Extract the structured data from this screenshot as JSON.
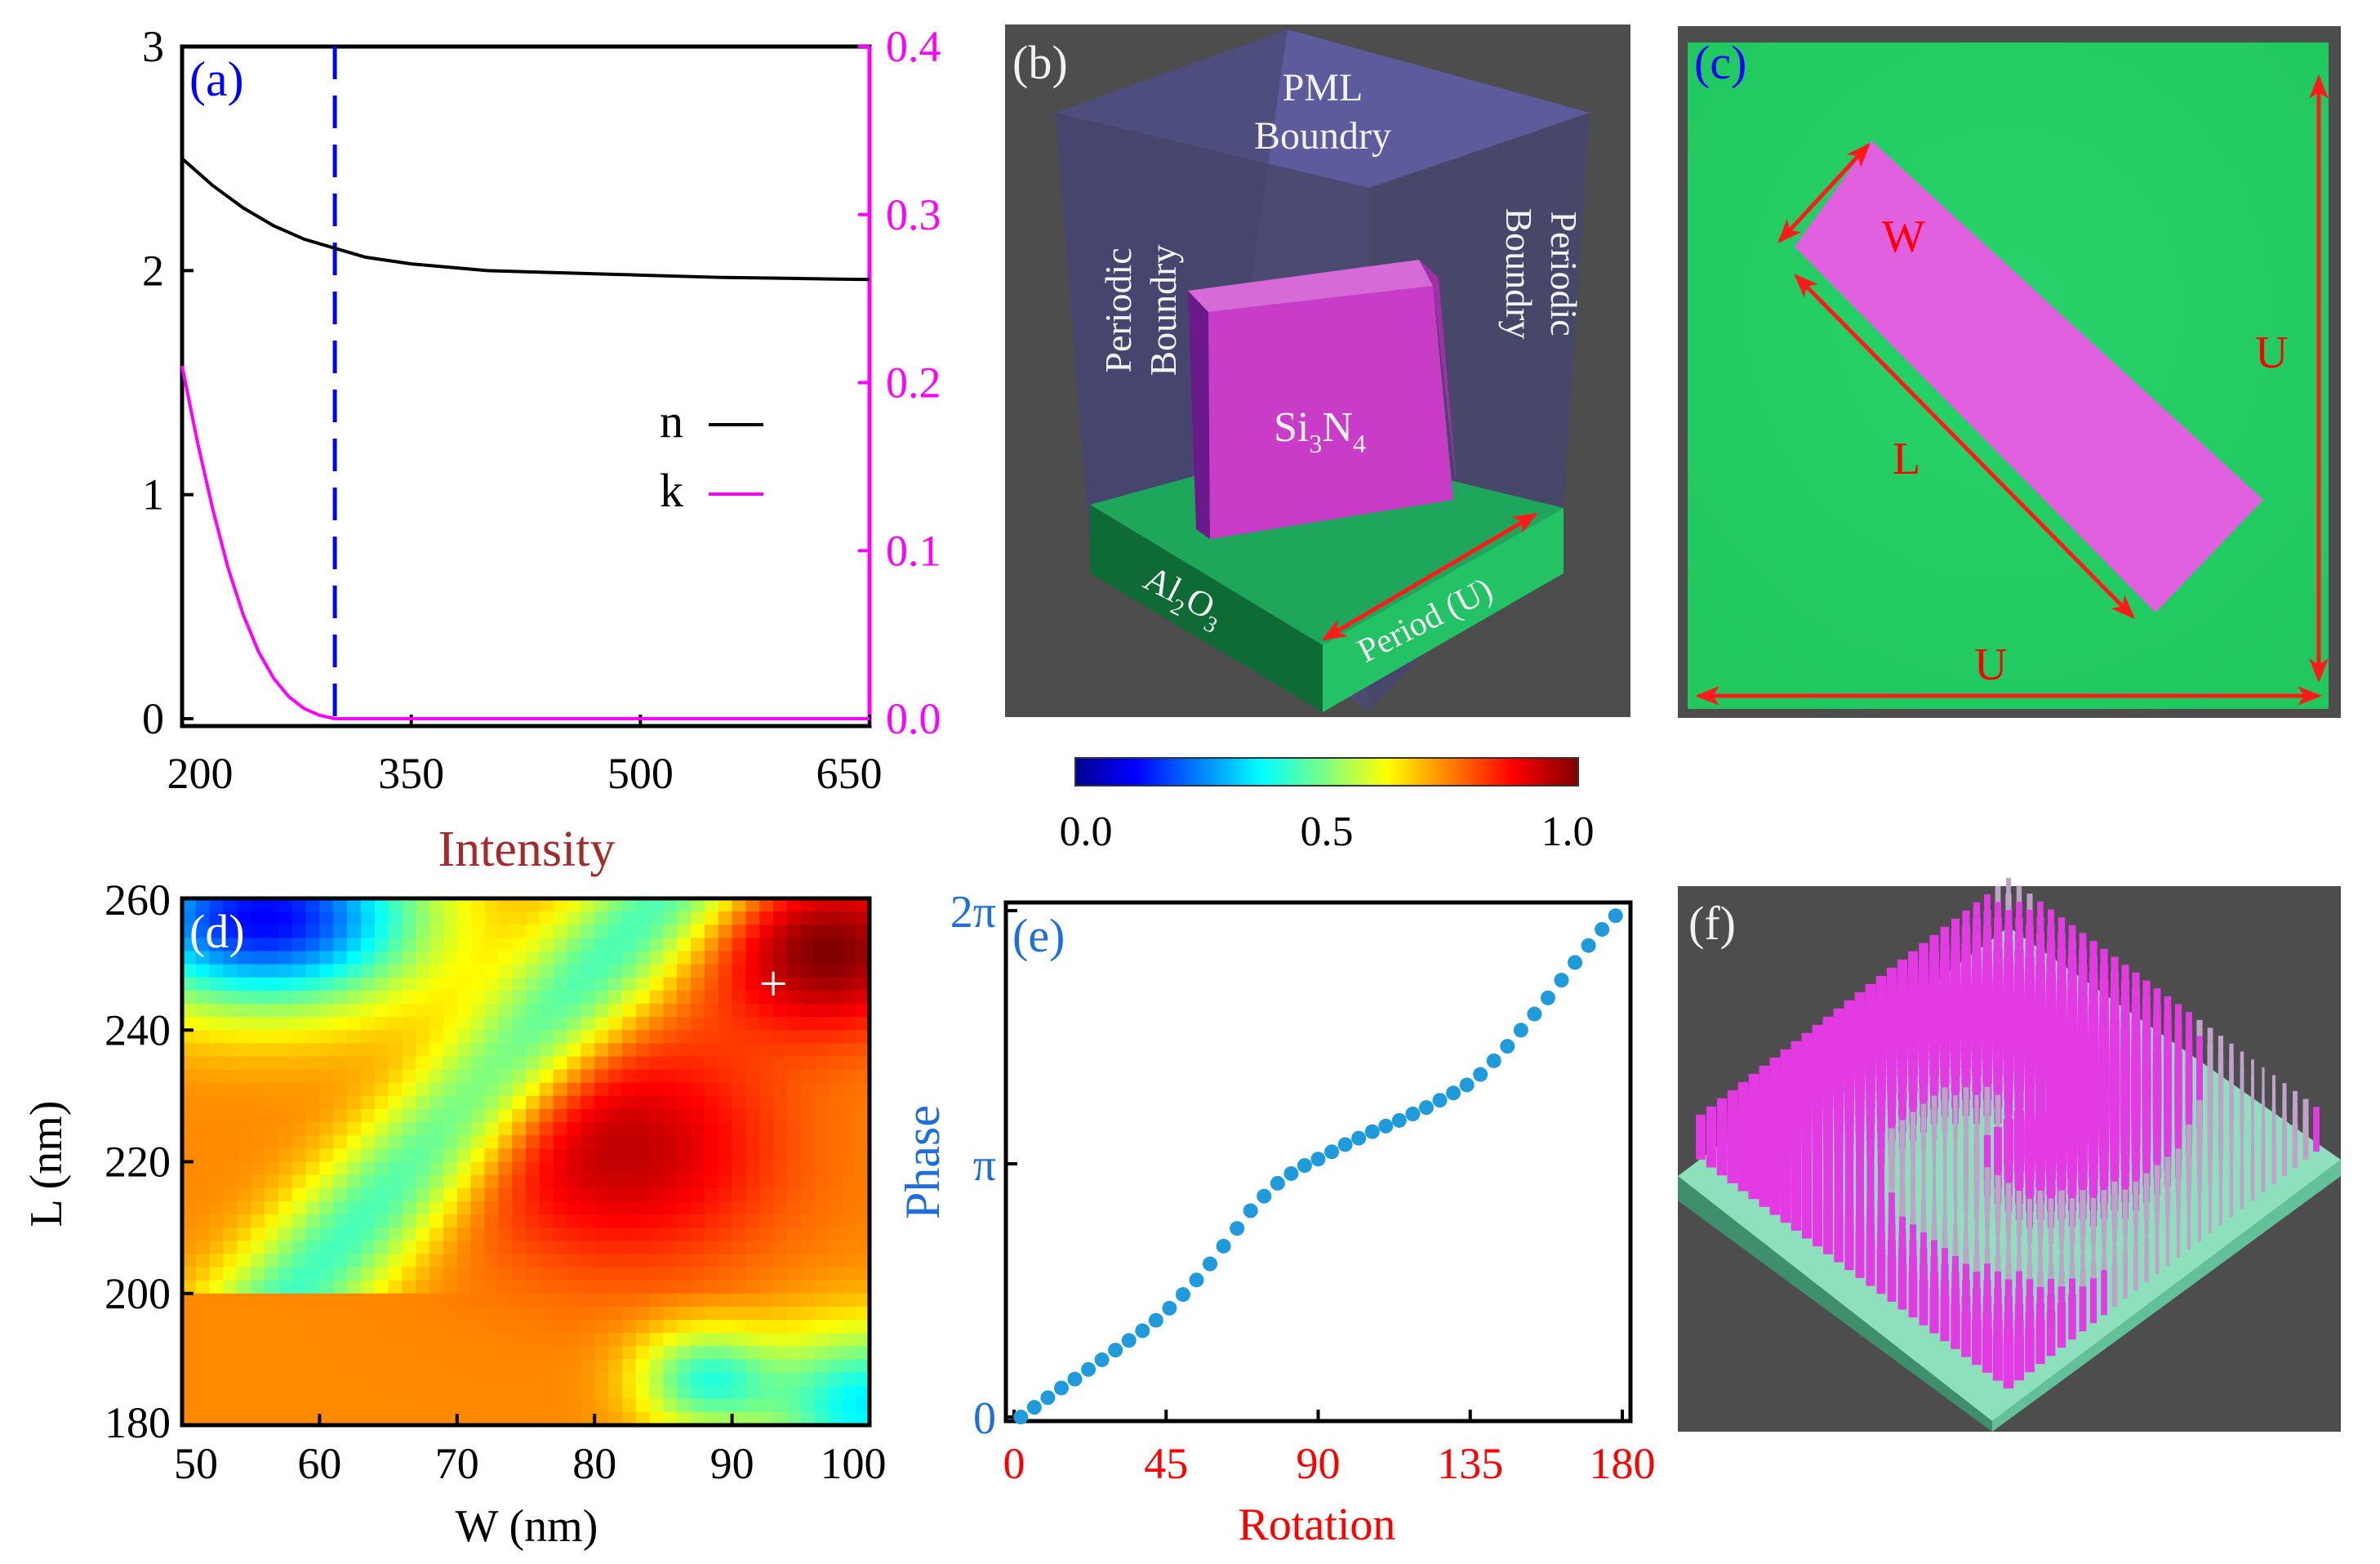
{
  "panel_labels": {
    "a": "(a)",
    "b": "(b)",
    "c": "(c)",
    "d": "(d)",
    "e": "(e)",
    "f": "(f)"
  },
  "colors": {
    "n_line": "#000000",
    "k_line": "#ff00ff",
    "dashed_line": "#0000ff",
    "label_blue": "#0000ff",
    "label_red": "#ff0000",
    "phase_blue": "#1e6fd9",
    "phase_dots": "#1f9bdc",
    "intensity_title": "#a52a2a",
    "panel_bg": "#4d4d4d",
    "substrate_green": "#2ec464",
    "pillar_magenta": "#e040e0",
    "pml_blue": "#5a5a9a"
  },
  "chart_data": [
    {
      "id": "a",
      "type": "line",
      "title": "",
      "xlabel": "",
      "ylabel": "",
      "x_ticks": [
        "200",
        "350",
        "500",
        "650"
      ],
      "x_range": [
        200,
        650
      ],
      "y_ticks": [
        "0",
        "1",
        "2",
        "3"
      ],
      "y_range": [
        0,
        3
      ],
      "y2_ticks": [
        "0.0",
        "0.1",
        "0.2",
        "0.3",
        "0.4"
      ],
      "y2_range": [
        0,
        0.4
      ],
      "dashed_x": 300,
      "series": [
        {
          "name": "n",
          "axis": "left",
          "x": [
            200,
            220,
            240,
            260,
            280,
            300,
            320,
            350,
            400,
            450,
            500,
            550,
            600,
            650
          ],
          "values": [
            2.5,
            2.38,
            2.28,
            2.2,
            2.14,
            2.1,
            2.06,
            2.03,
            2.0,
            1.99,
            1.98,
            1.97,
            1.965,
            1.96
          ]
        },
        {
          "name": "k",
          "axis": "right",
          "x": [
            200,
            210,
            220,
            230,
            240,
            250,
            260,
            270,
            280,
            290,
            300,
            320,
            350,
            400,
            500,
            650
          ],
          "values": [
            0.21,
            0.165,
            0.125,
            0.09,
            0.062,
            0.04,
            0.024,
            0.013,
            0.006,
            0.002,
            0.0,
            0.0,
            0.0,
            0.0,
            0.0,
            0.0
          ]
        }
      ],
      "legend": [
        {
          "label": "n"
        },
        {
          "label": "k"
        }
      ]
    },
    {
      "id": "colorbar",
      "type": "colorbar",
      "ticks": [
        "0.0",
        "0.5",
        "1.0"
      ],
      "range": [
        0,
        1
      ]
    },
    {
      "id": "d",
      "type": "heatmap",
      "title": "Intensity",
      "xlabel": "W (nm)",
      "ylabel": "L (nm)",
      "x_ticks": [
        "50",
        "60",
        "70",
        "80",
        "90",
        "100"
      ],
      "x_range": [
        50,
        100
      ],
      "y_ticks": [
        "180",
        "200",
        "220",
        "240",
        "260"
      ],
      "y_range": [
        180,
        260
      ],
      "marker": {
        "W": 93,
        "L": 247,
        "symbol": "+"
      }
    },
    {
      "id": "e",
      "type": "scatter",
      "title": "",
      "xlabel": "Rotation",
      "ylabel": "Phase",
      "x_ticks": [
        "0",
        "45",
        "90",
        "135",
        "180"
      ],
      "x_range": [
        0,
        180
      ],
      "y_ticks": [
        "0",
        "π",
        "2π"
      ],
      "y_range": [
        0,
        6.283
      ],
      "x": [
        2,
        6,
        10,
        14,
        18,
        22,
        26,
        30,
        34,
        38,
        42,
        46,
        50,
        54,
        58,
        62,
        66,
        70,
        74,
        78,
        82,
        86,
        90,
        94,
        98,
        102,
        106,
        110,
        114,
        118,
        122,
        126,
        130,
        134,
        138,
        142,
        146,
        150,
        154,
        158,
        162,
        166,
        170,
        174,
        178
      ],
      "values": [
        0.0,
        0.12,
        0.24,
        0.36,
        0.47,
        0.59,
        0.71,
        0.83,
        0.95,
        1.07,
        1.2,
        1.35,
        1.52,
        1.7,
        1.9,
        2.12,
        2.34,
        2.56,
        2.74,
        2.9,
        3.02,
        3.12,
        3.2,
        3.29,
        3.38,
        3.46,
        3.54,
        3.61,
        3.68,
        3.76,
        3.84,
        3.93,
        4.02,
        4.12,
        4.25,
        4.42,
        4.6,
        4.8,
        5.0,
        5.2,
        5.42,
        5.64,
        5.85,
        6.05,
        6.22
      ]
    }
  ],
  "panel_b": {
    "pml": "PML",
    "boundry": "Boundry",
    "periodic": "Periodic",
    "si": "Si",
    "si_sub": "3",
    "n": "N",
    "n_sub": "4",
    "al": "Al",
    "al_sub": "2",
    "o": "O",
    "o_sub": "3",
    "period": "Period (U)"
  },
  "panel_c": {
    "w": "W",
    "l": "L",
    "u_right": "U",
    "u_bottom": "U"
  }
}
